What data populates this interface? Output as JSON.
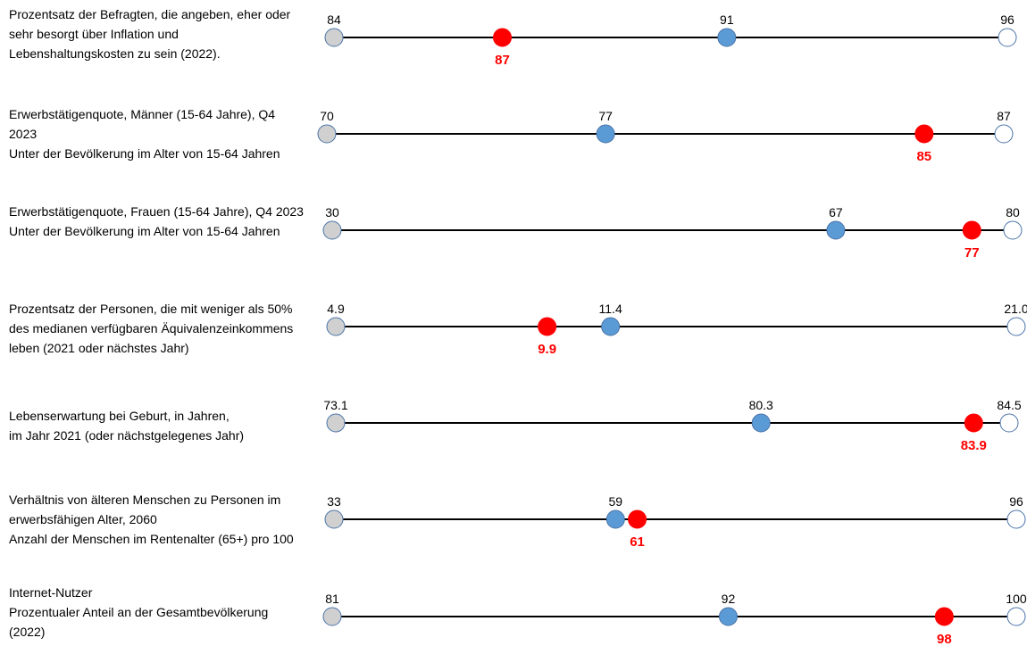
{
  "chart_data": {
    "type": "dot-range",
    "colors": {
      "line": "#000000",
      "min_marker": "#d0d0d0",
      "max_marker": "#ffffff",
      "oecd_marker": "#5b9bd5",
      "country_marker": "#ff0000",
      "marker_stroke": "#4a73a8",
      "country_label": "#ff0000"
    },
    "rows": [
      {
        "label_lines": [
          "Prozentsatz der Befragten, die angeben, eher oder",
          "sehr besorgt über Inflation und",
          "Lebenshaltungskosten zu sein (2022)."
        ],
        "min": 84,
        "max": 96,
        "oecd": 91,
        "country": 87,
        "min_label": "84",
        "max_label": "96",
        "oecd_label": "91",
        "country_label": "87"
      },
      {
        "label_lines": [
          "Erwerbstätigenquote, Männer (15-64 Jahre), Q4",
          "2023",
          "Unter der Bevölkerung im Alter von 15-64 Jahren"
        ],
        "min": 70,
        "max": 87,
        "oecd": 77,
        "country": 85,
        "min_label": "70",
        "max_label": "87",
        "oecd_label": "77",
        "country_label": "85"
      },
      {
        "label_lines": [
          "Erwerbstätigenquote, Frauen (15-64 Jahre), Q4 2023",
          "Unter der Bevölkerung im Alter von 15-64 Jahren"
        ],
        "min": 30,
        "max": 80,
        "oecd": 67,
        "country": 77,
        "min_label": "30",
        "max_label": "80",
        "oecd_label": "67",
        "country_label": "77"
      },
      {
        "label_lines": [
          "Prozentsatz der Personen, die mit weniger als 50%",
          "des medianen verfügbaren Äquivalenzeinkommens",
          "leben (2021 oder nächstes Jahr)"
        ],
        "min": 4.9,
        "max": 21.0,
        "oecd": 11.4,
        "country": 9.9,
        "min_label": "4.9",
        "max_label": "21.0",
        "oecd_label": "11.4",
        "country_label": "9.9"
      },
      {
        "label_lines": [
          "Lebenserwartung bei Geburt, in Jahren,",
          "im Jahr 2021 (oder nächstgelegenes Jahr)"
        ],
        "min": 73.1,
        "max": 84.5,
        "oecd": 80.3,
        "country": 83.9,
        "min_label": "73.1",
        "max_label": "84.5",
        "oecd_label": "80.3",
        "country_label": "83.9"
      },
      {
        "label_lines": [
          "Verhältnis von älteren Menschen zu Personen im",
          "erwerbsfähigen Alter, 2060",
          "Anzahl der Menschen im Rentenalter (65+) pro 100"
        ],
        "min": 33,
        "max": 96,
        "oecd": 59,
        "country": 61,
        "min_label": "33",
        "max_label": "96",
        "oecd_label": "59",
        "country_label": "61"
      },
      {
        "label_lines": [
          "Internet-Nutzer",
          "Prozentualer Anteil an der Gesamtbevölkerung",
          "(2022)"
        ],
        "min": 81,
        "max": 100,
        "oecd": 92,
        "country": 98,
        "min_label": "81",
        "max_label": "100",
        "oecd_label": "92",
        "country_label": "98"
      }
    ]
  }
}
